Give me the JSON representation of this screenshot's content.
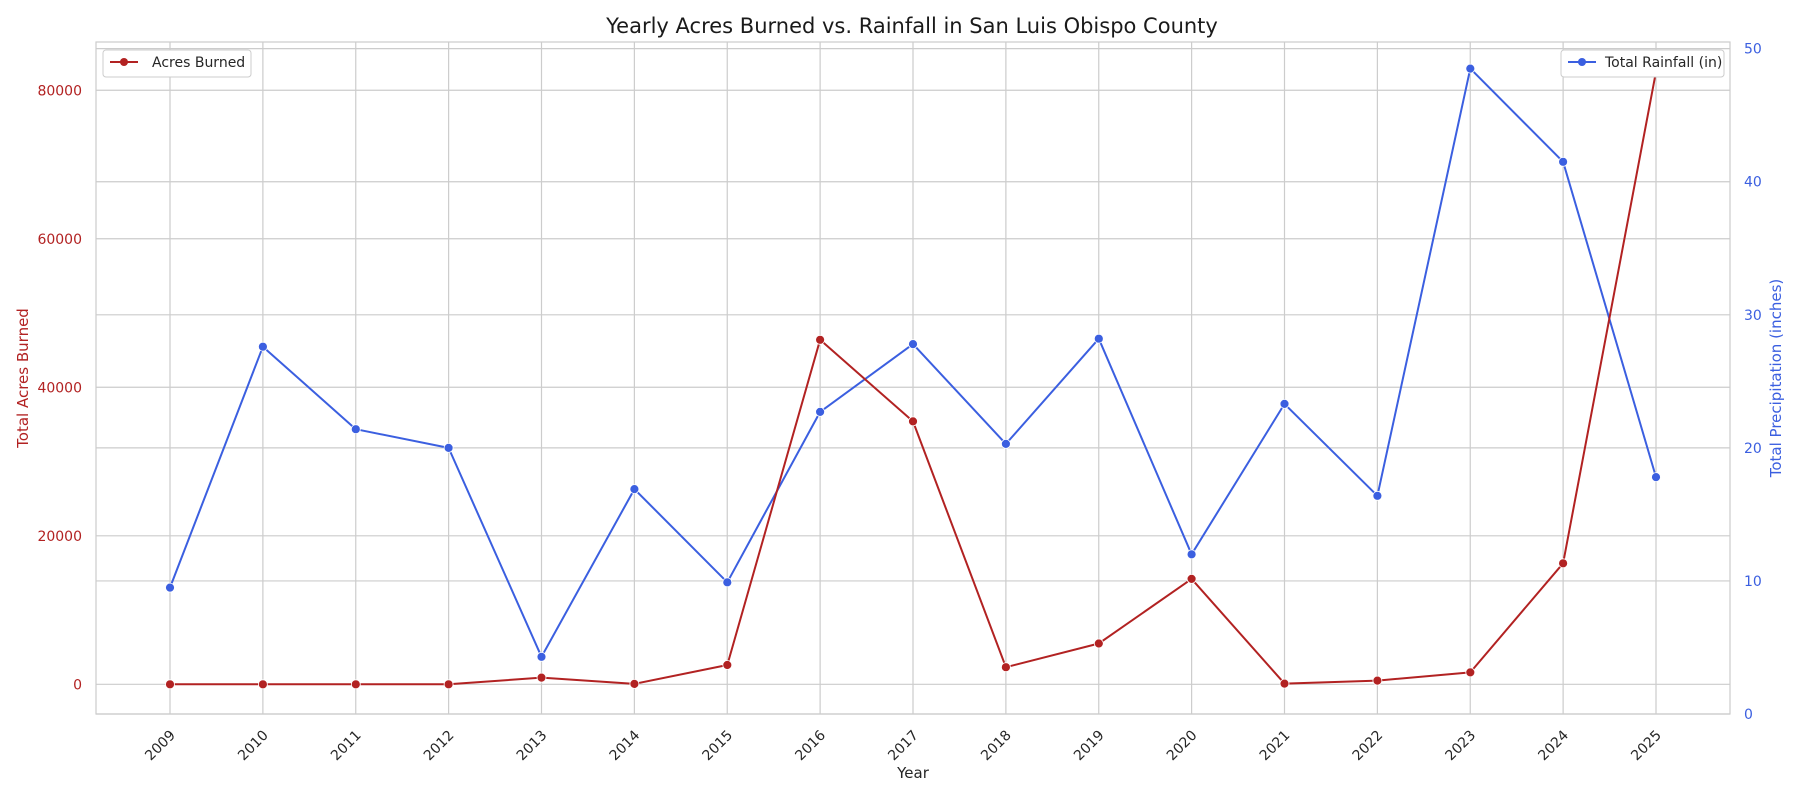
{
  "chart_data": {
    "type": "line",
    "title": "Yearly Acres Burned vs. Rainfall in San Luis Obispo County",
    "xlabel": "Year",
    "ylabel_left": "Total Acres Burned",
    "ylabel_right": "Total Precipitation (inches)",
    "categories": [
      "2009",
      "2010",
      "2011",
      "2012",
      "2013",
      "2014",
      "2015",
      "2016",
      "2017",
      "2018",
      "2019",
      "2020",
      "2021",
      "2022",
      "2023",
      "2024",
      "2025"
    ],
    "ylim_left": [
      -4000,
      86500
    ],
    "ylim_right": [
      0,
      50.5
    ],
    "yticks_left": [
      0,
      20000,
      40000,
      60000,
      80000
    ],
    "yticks_right": [
      0,
      10,
      20,
      30,
      40,
      50
    ],
    "grid": true,
    "series": [
      {
        "name": "Acres Burned",
        "axis": "left",
        "color": "#b22222",
        "values": [
          0,
          0,
          0,
          0,
          900,
          50,
          2600,
          46400,
          35400,
          2300,
          5500,
          14200,
          100,
          500,
          1600,
          16300,
          82500
        ]
      },
      {
        "name": "Total Rainfall (in)",
        "axis": "right",
        "color": "#3b5fe0",
        "values": [
          9.5,
          27.6,
          21.4,
          20.0,
          4.3,
          16.9,
          9.9,
          22.7,
          27.8,
          20.3,
          28.2,
          12.0,
          23.3,
          16.4,
          48.5,
          41.5,
          17.8
        ]
      }
    ],
    "legend": [
      {
        "label": "Acres Burned",
        "placement": "top-left"
      },
      {
        "label": "Total Rainfall (in)",
        "placement": "top-right"
      }
    ]
  }
}
